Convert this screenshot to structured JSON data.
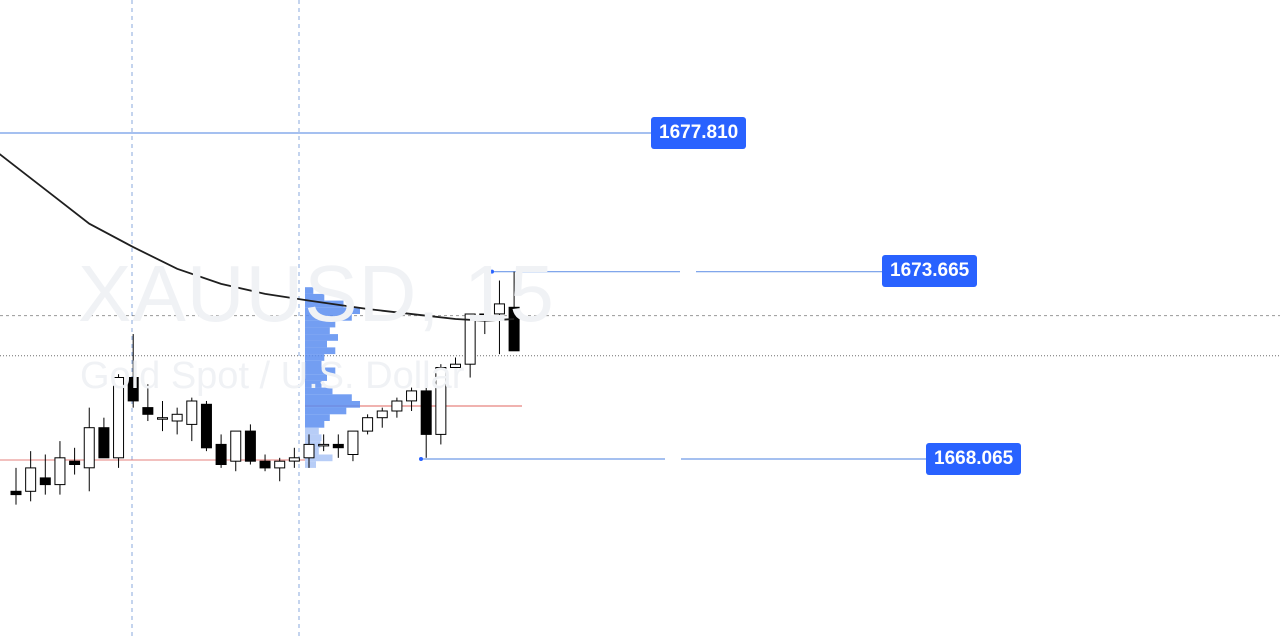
{
  "watermark": {
    "symbol": "XAUUSD, 15",
    "description": "Gold Spot / U.S. Dollar"
  },
  "price_labels": [
    {
      "id": "upper",
      "text": "1677.810"
    },
    {
      "id": "middle",
      "text": "1673.665"
    },
    {
      "id": "lower",
      "text": "1668.065"
    }
  ],
  "colors": {
    "accent": "#2962ff",
    "level_line": "#6f9ae8",
    "vertical_grid": "#6b93d6",
    "ma_line": "#1f1f1f",
    "poc_line": "#e0645f",
    "profile_fill": "#5b8df0",
    "profile_fill_light": "#aac4f6",
    "candle_up_fill": "#ffffff",
    "candle_down_fill": "#000000"
  },
  "chart_data": {
    "type": "candlestick",
    "symbol": "XAUUSD",
    "timeframe": "15",
    "price_range": [
      1663.5,
      1681.5
    ],
    "horizontal_levels": [
      1677.81,
      1673.665,
      1668.065
    ],
    "poc_level": 1669.65,
    "dashed_price_line": 1672.35,
    "dotted_price_line": 1671.15,
    "candles": [
      {
        "o": 1667.1,
        "h": 1667.8,
        "l": 1666.7,
        "c": 1667.0
      },
      {
        "o": 1667.1,
        "h": 1668.3,
        "l": 1666.8,
        "c": 1667.8
      },
      {
        "o": 1667.5,
        "h": 1668.2,
        "l": 1667.0,
        "c": 1667.3
      },
      {
        "o": 1667.3,
        "h": 1668.6,
        "l": 1667.0,
        "c": 1668.1
      },
      {
        "o": 1668.0,
        "h": 1668.4,
        "l": 1667.6,
        "c": 1667.9
      },
      {
        "o": 1667.8,
        "h": 1669.6,
        "l": 1667.1,
        "c": 1669.0
      },
      {
        "o": 1669.0,
        "h": 1669.3,
        "l": 1668.1,
        "c": 1668.1
      },
      {
        "o": 1668.1,
        "h": 1670.6,
        "l": 1667.8,
        "c": 1670.5
      },
      {
        "o": 1670.5,
        "h": 1671.8,
        "l": 1669.6,
        "c": 1669.8
      },
      {
        "o": 1669.6,
        "h": 1670.3,
        "l": 1669.2,
        "c": 1669.4
      },
      {
        "o": 1669.3,
        "h": 1669.8,
        "l": 1668.9,
        "c": 1669.3
      },
      {
        "o": 1669.2,
        "h": 1669.6,
        "l": 1668.8,
        "c": 1669.4
      },
      {
        "o": 1669.1,
        "h": 1669.9,
        "l": 1668.6,
        "c": 1669.8
      },
      {
        "o": 1669.7,
        "h": 1669.8,
        "l": 1668.3,
        "c": 1668.4
      },
      {
        "o": 1668.5,
        "h": 1668.8,
        "l": 1667.8,
        "c": 1667.9
      },
      {
        "o": 1668.0,
        "h": 1668.9,
        "l": 1667.7,
        "c": 1668.9
      },
      {
        "o": 1668.9,
        "h": 1669.1,
        "l": 1667.9,
        "c": 1668.0
      },
      {
        "o": 1668.0,
        "h": 1668.2,
        "l": 1667.7,
        "c": 1667.8
      },
      {
        "o": 1667.8,
        "h": 1668.1,
        "l": 1667.4,
        "c": 1668.0
      },
      {
        "o": 1668.0,
        "h": 1668.4,
        "l": 1667.8,
        "c": 1668.1
      },
      {
        "o": 1668.1,
        "h": 1668.8,
        "l": 1667.8,
        "c": 1668.5
      },
      {
        "o": 1668.5,
        "h": 1668.8,
        "l": 1668.3,
        "c": 1668.5
      },
      {
        "o": 1668.5,
        "h": 1668.8,
        "l": 1668.1,
        "c": 1668.4
      },
      {
        "o": 1668.2,
        "h": 1668.9,
        "l": 1668.0,
        "c": 1668.9
      },
      {
        "o": 1668.9,
        "h": 1669.4,
        "l": 1668.8,
        "c": 1669.3
      },
      {
        "o": 1669.3,
        "h": 1669.6,
        "l": 1669.0,
        "c": 1669.5
      },
      {
        "o": 1669.5,
        "h": 1669.9,
        "l": 1669.3,
        "c": 1669.8
      },
      {
        "o": 1669.8,
        "h": 1670.2,
        "l": 1669.5,
        "c": 1670.1
      },
      {
        "o": 1670.1,
        "h": 1670.3,
        "l": 1668.1,
        "c": 1668.8
      },
      {
        "o": 1668.8,
        "h": 1670.9,
        "l": 1668.5,
        "c": 1670.8
      },
      {
        "o": 1670.8,
        "h": 1671.1,
        "l": 1670.5,
        "c": 1670.9
      },
      {
        "o": 1670.9,
        "h": 1672.4,
        "l": 1670.5,
        "c": 1672.4
      },
      {
        "o": 1672.4,
        "h": 1672.9,
        "l": 1671.8,
        "c": 1672.3
      },
      {
        "o": 1672.4,
        "h": 1673.4,
        "l": 1671.2,
        "c": 1672.7
      },
      {
        "o": 1672.6,
        "h": 1673.665,
        "l": 1671.3,
        "c": 1671.3
      }
    ],
    "moving_average": [
      {
        "i": -6.6,
        "v": 1679.45
      },
      {
        "i": -5.6,
        "v": 1678.8
      },
      {
        "i": -4.3,
        "v": 1678.3
      },
      {
        "i": -2.5,
        "v": 1677.65
      },
      {
        "i": 0.0,
        "v": 1676.8
      },
      {
        "i": 2.5,
        "v": 1675.95
      },
      {
        "i": 5.0,
        "v": 1675.1
      },
      {
        "i": 8.0,
        "v": 1674.4
      },
      {
        "i": 11.0,
        "v": 1673.75
      },
      {
        "i": 14.0,
        "v": 1673.3
      },
      {
        "i": 17.0,
        "v": 1673.0
      },
      {
        "i": 20.0,
        "v": 1672.8
      },
      {
        "i": 24.0,
        "v": 1672.55
      },
      {
        "i": 28.0,
        "v": 1672.35
      },
      {
        "i": 30.0,
        "v": 1672.25
      },
      {
        "i": 32.0,
        "v": 1672.2
      },
      {
        "i": 34.0,
        "v": 1672.25
      }
    ],
    "volume_profile": [
      {
        "p": 1673.1,
        "v": 0.15
      },
      {
        "p": 1672.9,
        "v": 0.35
      },
      {
        "p": 1672.7,
        "v": 0.7
      },
      {
        "p": 1672.5,
        "v": 1.0
      },
      {
        "p": 1672.3,
        "v": 0.85
      },
      {
        "p": 1672.1,
        "v": 0.55
      },
      {
        "p": 1671.9,
        "v": 0.45
      },
      {
        "p": 1671.7,
        "v": 0.6
      },
      {
        "p": 1671.5,
        "v": 0.4
      },
      {
        "p": 1671.3,
        "v": 0.55
      },
      {
        "p": 1671.1,
        "v": 0.35
      },
      {
        "p": 1670.9,
        "v": 0.3
      },
      {
        "p": 1670.7,
        "v": 0.55
      },
      {
        "p": 1670.5,
        "v": 0.4
      },
      {
        "p": 1670.3,
        "v": 0.3
      },
      {
        "p": 1670.1,
        "v": 0.5
      },
      {
        "p": 1669.9,
        "v": 0.85
      },
      {
        "p": 1669.7,
        "v": 1.0
      },
      {
        "p": 1669.5,
        "v": 0.75
      },
      {
        "p": 1669.3,
        "v": 0.45
      },
      {
        "p": 1669.1,
        "v": 0.35
      },
      {
        "p": 1668.9,
        "v": 0.25
      },
      {
        "p": 1668.7,
        "v": 0.3
      },
      {
        "p": 1668.5,
        "v": 0.28
      },
      {
        "p": 1668.3,
        "v": 0.25
      },
      {
        "p": 1668.1,
        "v": 0.5
      },
      {
        "p": 1667.9,
        "v": 0.2
      }
    ]
  }
}
